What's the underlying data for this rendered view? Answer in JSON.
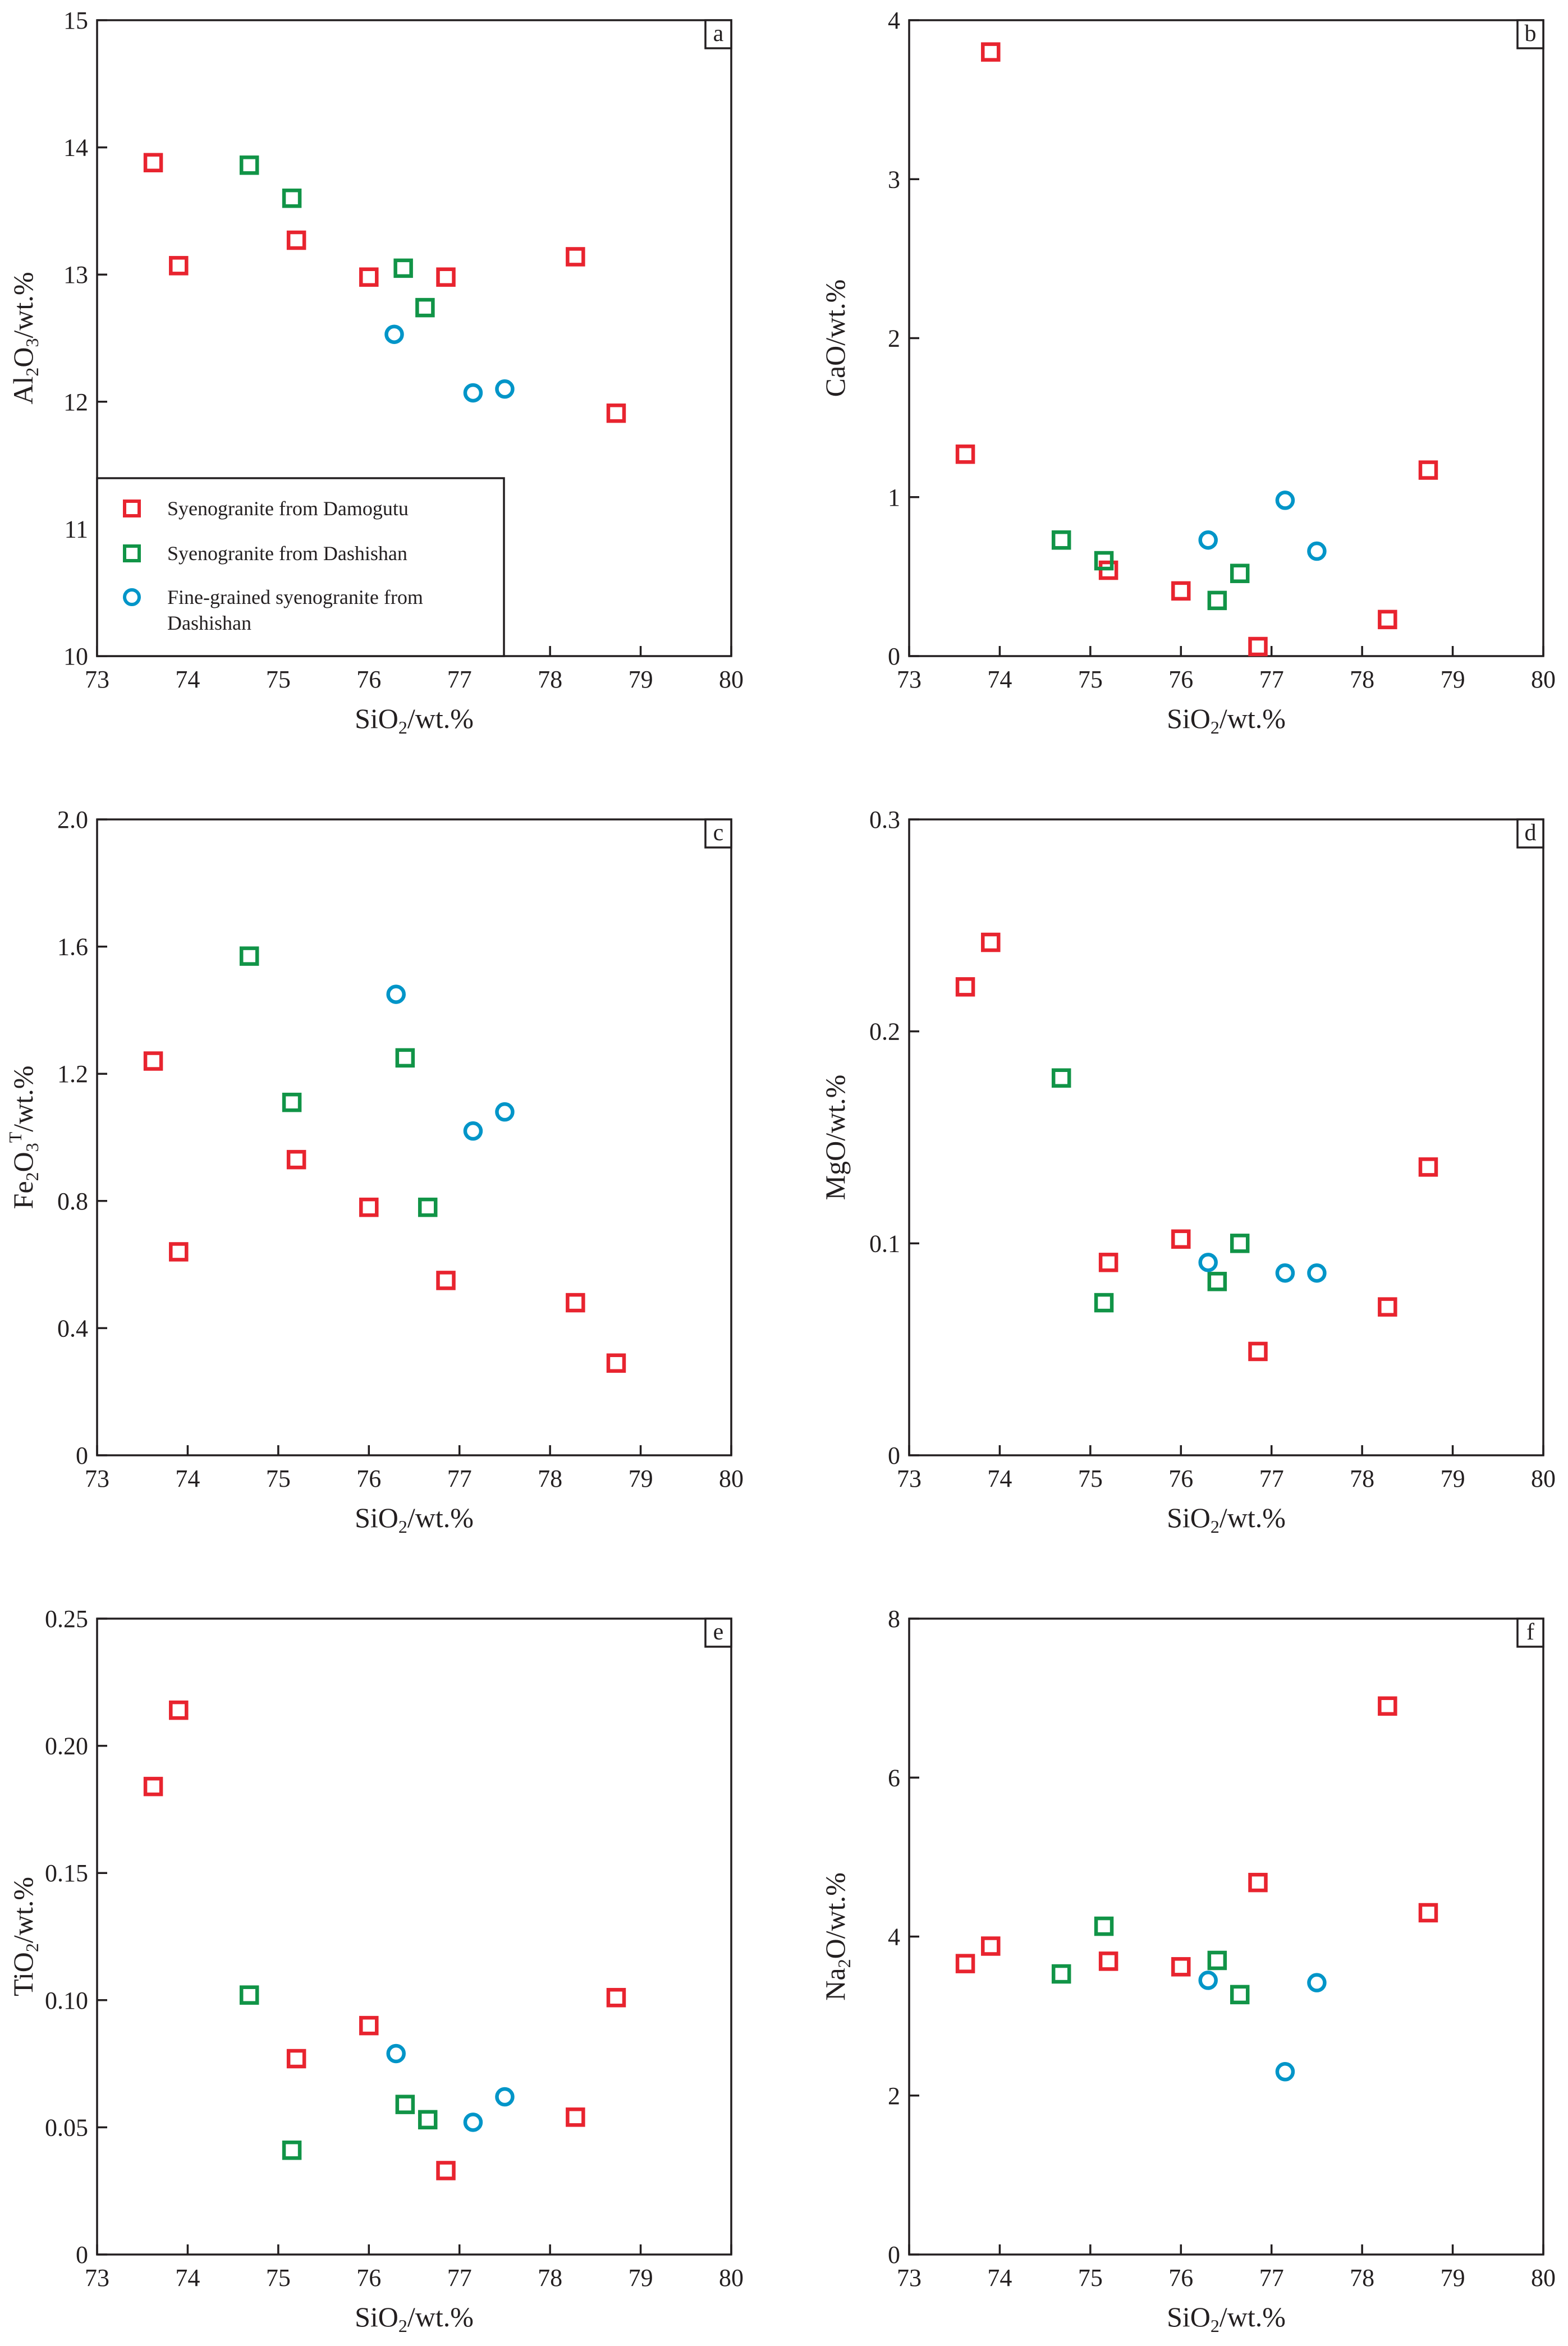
{
  "colors": {
    "damogutu": "#e8242f",
    "dashishan": "#119447",
    "fine_grained": "#0095c8"
  },
  "legend": {
    "items": [
      {
        "key": "damogutu",
        "label": "Syenogranite from Damogutu",
        "marker": "square"
      },
      {
        "key": "dashishan",
        "label": "Syenogranite from Dashishan",
        "marker": "square"
      },
      {
        "key": "fine_grained",
        "label_lines": [
          "Fine-grained syenogranite from",
          "Dashishan"
        ],
        "marker": "circle"
      }
    ]
  },
  "chart_data": [
    {
      "id": "a",
      "type": "scatter",
      "tag": "a",
      "xlabel": {
        "main": "SiO",
        "sub": "2",
        "rest": "/wt.%"
      },
      "ylabel": [
        {
          "t": "Al"
        },
        {
          "t": "2",
          "sub": true
        },
        {
          "t": "O"
        },
        {
          "t": "3",
          "sub": true
        },
        {
          "t": "/wt.%"
        }
      ],
      "xlim": [
        73,
        80
      ],
      "ylim": [
        10,
        15
      ],
      "xticks": [
        73,
        74,
        75,
        76,
        77,
        78,
        79,
        80
      ],
      "yticks": [
        10,
        11,
        12,
        13,
        14,
        15
      ],
      "ytick_labels": [
        "10",
        "11",
        "12",
        "13",
        "14",
        "15"
      ],
      "legend": "bottom-left",
      "series": [
        {
          "key": "damogutu",
          "points": [
            [
              73.62,
              13.88
            ],
            [
              73.9,
              13.07
            ],
            [
              75.2,
              13.27
            ],
            [
              76.0,
              12.98
            ],
            [
              76.85,
              12.98
            ],
            [
              78.28,
              13.14
            ],
            [
              78.73,
              11.91
            ]
          ]
        },
        {
          "key": "dashishan",
          "points": [
            [
              74.68,
              13.86
            ],
            [
              75.15,
              13.6
            ],
            [
              76.38,
              13.05
            ],
            [
              76.62,
              12.74
            ]
          ]
        },
        {
          "key": "fine_grained",
          "points": [
            [
              76.28,
              12.53
            ],
            [
              77.15,
              12.07
            ],
            [
              77.5,
              12.1
            ]
          ]
        }
      ]
    },
    {
      "id": "b",
      "type": "scatter",
      "tag": "b",
      "xlabel": {
        "main": "SiO",
        "sub": "2",
        "rest": "/wt.%"
      },
      "ylabel": [
        {
          "t": "CaO/wt.%"
        }
      ],
      "xlim": [
        73,
        80
      ],
      "ylim": [
        0,
        4
      ],
      "xticks": [
        73,
        74,
        75,
        76,
        77,
        78,
        79,
        80
      ],
      "yticks": [
        0,
        1,
        2,
        3,
        4
      ],
      "ytick_labels": [
        "0",
        "1",
        "2",
        "3",
        "4"
      ],
      "series": [
        {
          "key": "damogutu",
          "points": [
            [
              73.62,
              1.27
            ],
            [
              73.9,
              3.8
            ],
            [
              75.2,
              0.54
            ],
            [
              76.0,
              0.41
            ],
            [
              76.85,
              0.06
            ],
            [
              78.28,
              0.23
            ],
            [
              78.73,
              1.17
            ]
          ]
        },
        {
          "key": "dashishan",
          "points": [
            [
              74.68,
              0.73
            ],
            [
              75.15,
              0.6
            ],
            [
              76.4,
              0.35
            ],
            [
              76.65,
              0.52
            ]
          ]
        },
        {
          "key": "fine_grained",
          "points": [
            [
              76.3,
              0.73
            ],
            [
              77.15,
              0.98
            ],
            [
              77.5,
              0.66
            ]
          ]
        }
      ]
    },
    {
      "id": "c",
      "type": "scatter",
      "tag": "c",
      "xlabel": {
        "main": "SiO",
        "sub": "2",
        "rest": "/wt.%"
      },
      "ylabel": [
        {
          "t": "Fe"
        },
        {
          "t": "2",
          "sub": true
        },
        {
          "t": "O"
        },
        {
          "t": "3",
          "sub": true
        },
        {
          "t": "T",
          "sup": true
        },
        {
          "t": "/wt.%"
        }
      ],
      "xlim": [
        73,
        80
      ],
      "ylim": [
        0,
        2.0
      ],
      "xticks": [
        73,
        74,
        75,
        76,
        77,
        78,
        79,
        80
      ],
      "yticks": [
        0,
        0.4,
        0.8,
        1.2,
        1.6,
        2.0
      ],
      "ytick_labels": [
        "0",
        "0.4",
        "0.8",
        "1.2",
        "1.6",
        "2.0"
      ],
      "series": [
        {
          "key": "damogutu",
          "points": [
            [
              73.62,
              1.24
            ],
            [
              73.9,
              0.64
            ],
            [
              75.2,
              0.93
            ],
            [
              76.0,
              0.78
            ],
            [
              76.85,
              0.55
            ],
            [
              78.28,
              0.48
            ],
            [
              78.73,
              0.29
            ]
          ]
        },
        {
          "key": "dashishan",
          "points": [
            [
              74.68,
              1.57
            ],
            [
              75.15,
              1.11
            ],
            [
              76.4,
              1.25
            ],
            [
              76.65,
              0.78
            ]
          ]
        },
        {
          "key": "fine_grained",
          "points": [
            [
              76.3,
              1.45
            ],
            [
              77.15,
              1.02
            ],
            [
              77.5,
              1.08
            ]
          ]
        }
      ]
    },
    {
      "id": "d",
      "type": "scatter",
      "tag": "d",
      "xlabel": {
        "main": "SiO",
        "sub": "2",
        "rest": "/wt.%"
      },
      "ylabel": [
        {
          "t": "MgO/wt.%"
        }
      ],
      "xlim": [
        73,
        80
      ],
      "ylim": [
        0,
        0.3
      ],
      "xticks": [
        73,
        74,
        75,
        76,
        77,
        78,
        79,
        80
      ],
      "yticks": [
        0,
        0.1,
        0.2,
        0.3
      ],
      "ytick_labels": [
        "0",
        "0.1",
        "0.2",
        "0.3"
      ],
      "series": [
        {
          "key": "damogutu",
          "points": [
            [
              73.62,
              0.221
            ],
            [
              73.9,
              0.242
            ],
            [
              75.2,
              0.091
            ],
            [
              76.0,
              0.102
            ],
            [
              76.85,
              0.049
            ],
            [
              78.28,
              0.07
            ],
            [
              78.73,
              0.136
            ]
          ]
        },
        {
          "key": "dashishan",
          "points": [
            [
              74.68,
              0.178
            ],
            [
              75.15,
              0.072
            ],
            [
              76.4,
              0.082
            ],
            [
              76.65,
              0.1
            ]
          ]
        },
        {
          "key": "fine_grained",
          "points": [
            [
              76.3,
              0.091
            ],
            [
              77.15,
              0.086
            ],
            [
              77.5,
              0.086
            ]
          ]
        }
      ]
    },
    {
      "id": "e",
      "type": "scatter",
      "tag": "e",
      "xlabel": {
        "main": "SiO",
        "sub": "2",
        "rest": "/wt.%"
      },
      "ylabel": [
        {
          "t": "TiO"
        },
        {
          "t": "2",
          "sub": true
        },
        {
          "t": "/wt.%"
        }
      ],
      "xlim": [
        73,
        80
      ],
      "ylim": [
        0,
        0.25
      ],
      "xticks": [
        73,
        74,
        75,
        76,
        77,
        78,
        79,
        80
      ],
      "yticks": [
        0,
        0.05,
        0.1,
        0.15,
        0.2,
        0.25
      ],
      "ytick_labels": [
        "0",
        "0.05",
        "0.10",
        "0.15",
        "0.20",
        "0.25"
      ],
      "series": [
        {
          "key": "damogutu",
          "points": [
            [
              73.62,
              0.184
            ],
            [
              73.9,
              0.214
            ],
            [
              75.2,
              0.077
            ],
            [
              76.0,
              0.09
            ],
            [
              76.85,
              0.033
            ],
            [
              78.28,
              0.054
            ],
            [
              78.73,
              0.101
            ]
          ]
        },
        {
          "key": "dashishan",
          "points": [
            [
              74.68,
              0.102
            ],
            [
              75.15,
              0.041
            ],
            [
              76.4,
              0.059
            ],
            [
              76.65,
              0.053
            ]
          ]
        },
        {
          "key": "fine_grained",
          "points": [
            [
              76.3,
              0.079
            ],
            [
              77.15,
              0.052
            ],
            [
              77.5,
              0.062
            ]
          ]
        }
      ]
    },
    {
      "id": "f",
      "type": "scatter",
      "tag": "f",
      "xlabel": {
        "main": "SiO",
        "sub": "2",
        "rest": "/wt.%"
      },
      "ylabel": [
        {
          "t": "Na"
        },
        {
          "t": "2",
          "sub": true
        },
        {
          "t": "O/wt.%"
        }
      ],
      "xlim": [
        73,
        80
      ],
      "ylim": [
        0,
        8
      ],
      "xticks": [
        73,
        74,
        75,
        76,
        77,
        78,
        79,
        80
      ],
      "yticks": [
        0,
        2,
        4,
        6,
        8
      ],
      "ytick_labels": [
        "0",
        "2",
        "4",
        "6",
        "8"
      ],
      "series": [
        {
          "key": "damogutu",
          "points": [
            [
              73.62,
              3.66
            ],
            [
              73.9,
              3.88
            ],
            [
              75.2,
              3.69
            ],
            [
              76.0,
              3.62
            ],
            [
              76.85,
              4.68
            ],
            [
              78.28,
              6.9
            ],
            [
              78.73,
              4.3
            ]
          ]
        },
        {
          "key": "dashishan",
          "points": [
            [
              74.68,
              3.53
            ],
            [
              75.15,
              4.13
            ],
            [
              76.4,
              3.7
            ],
            [
              76.65,
              3.27
            ]
          ]
        },
        {
          "key": "fine_grained",
          "points": [
            [
              76.3,
              3.45
            ],
            [
              77.15,
              2.3
            ],
            [
              77.5,
              3.42
            ]
          ]
        }
      ]
    }
  ]
}
